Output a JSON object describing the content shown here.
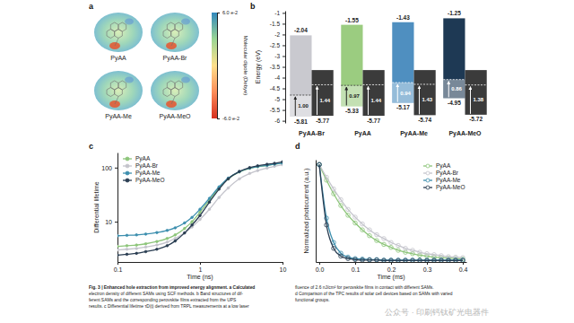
{
  "panel_labels": [
    "a",
    "b",
    "c",
    "d"
  ],
  "panel_a": {
    "molecules": [
      "PyAA",
      "PyAA-Br",
      "PyAA-Me",
      "PyAA-MeO"
    ],
    "colorbar": {
      "label": "Molecular dipole (Debye)",
      "range": [
        -0.06,
        0.06
      ],
      "ticks": [
        {
          "value": 0.06,
          "label": "6.0 e-2"
        },
        {
          "value": -0.06,
          "label": "-6.0 e-2"
        }
      ],
      "colors": [
        "#d7301f",
        "#fc8d59",
        "#fee08b",
        "#99d594",
        "#3288bd"
      ]
    }
  },
  "chart_data": [
    {
      "type": "band_diagram",
      "ylabel": "Energy (eV)",
      "categories": [
        "PyAA-Br",
        "PyAA",
        "PyAA-Me",
        "PyAA-MeO"
      ],
      "ylim": [
        -6.1,
        -0.9
      ],
      "yticks": [
        -6,
        -5.5,
        -5,
        -4.5,
        -4,
        -3.5,
        -3,
        -2.5,
        -2,
        -1.5,
        -1
      ],
      "data_labels": true,
      "sam": {
        "top": [
          -2.04,
          -1.55,
          -1.43,
          -1.25
        ],
        "bottom": [
          -5.81,
          -5.33,
          -5.17,
          -4.95
        ],
        "colors": [
          "#c9c9cf",
          "#9bcc80",
          "#4f8fc0",
          "#1e3954"
        ],
        "offset": [
          1,
          0.97,
          0.94,
          0.86
        ],
        "offset_labels": [
          "1.00",
          "0.97",
          "0.94",
          "0.86"
        ]
      },
      "perovskite": {
        "top": [
          -3.65,
          -3.65,
          -3.65,
          -3.65
        ],
        "bottom": [
          -5.77,
          -5.77,
          -5.74,
          -5.72
        ],
        "color": "#3b3b3b",
        "offset": [
          1.44,
          1.44,
          1.43,
          1.38
        ]
      }
    },
    {
      "type": "line",
      "log": true,
      "legend": "upper left",
      "marker": "circle",
      "xlabel": "Time (ns)",
      "ylabel": "Differential lifetime",
      "x": [
        0.1,
        0.13,
        0.17,
        0.22,
        0.3,
        0.4,
        0.5,
        0.65,
        0.8,
        1,
        1.3,
        1.7,
        2.2,
        3,
        4,
        5,
        6.5,
        8,
        10
      ],
      "xlim": [
        0.1,
        10
      ],
      "xticks": [
        0.1,
        1,
        10
      ],
      "ylim": [
        1.8,
        190
      ],
      "yticks": [
        10,
        100
      ],
      "series": [
        {
          "name": "PyAA",
          "color": "#8dc57a",
          "values": [
            3.5,
            3.6,
            3.7,
            3.9,
            4.3,
            4.9,
            5.7,
            7.5,
            10,
            15,
            25,
            42,
            62,
            83,
            97,
            104,
            110,
            115,
            122
          ]
        },
        {
          "name": "PyAA-Br",
          "color": "#c4c4cc",
          "values": [
            3.0,
            3.1,
            3.2,
            3.4,
            3.7,
            4.2,
            4.9,
            6.2,
            8,
            11,
            17,
            28,
            42,
            62,
            78,
            88,
            98,
            106,
            113
          ]
        },
        {
          "name": "PyAA-Me",
          "color": "#3d8fae",
          "values": [
            5.5,
            5.6,
            5.7,
            5.9,
            6.3,
            6.9,
            7.7,
            9.5,
            12,
            17,
            27,
            44,
            64,
            84,
            98,
            105,
            110,
            116,
            121
          ]
        },
        {
          "name": "PyAA-MeO",
          "color": "#2a3d52",
          "values": [
            2.4,
            2.5,
            2.6,
            2.8,
            3.1,
            3.6,
            4.4,
            6.2,
            8.7,
            13,
            23,
            40,
            62,
            85,
            100,
            108,
            115,
            120,
            128
          ]
        }
      ]
    },
    {
      "type": "line",
      "legend": "upper right",
      "marker": "circle",
      "line_style": "solid",
      "tick_labels": "x",
      "xlabel": "Time (ms)",
      "ylabel": "Normalized photocurrent (a.u.)",
      "x": [
        0,
        0.02,
        0.04,
        0.06,
        0.08,
        0.1,
        0.12,
        0.14,
        0.16,
        0.18,
        0.2,
        0.22,
        0.24,
        0.26,
        0.28,
        0.3,
        0.32,
        0.34,
        0.36,
        0.38,
        0.4
      ],
      "xlim": [
        -0.01,
        0.41
      ],
      "xticks": [
        {
          "value": 0,
          "label": "0.0"
        },
        0.1,
        0.2,
        0.3,
        0.4
      ],
      "ylim": [
        0,
        1.05
      ],
      "series": [
        {
          "name": "PyAA",
          "color": "#8dc57a",
          "values": [
            1.0,
            0.84,
            0.7,
            0.58,
            0.48,
            0.4,
            0.33,
            0.27,
            0.22,
            0.18,
            0.15,
            0.12,
            0.1,
            0.085,
            0.07,
            0.06,
            0.05,
            0.045,
            0.04,
            0.035,
            0.03
          ]
        },
        {
          "name": "PyAA-Br",
          "color": "#c4c4cc",
          "values": [
            1.0,
            0.87,
            0.75,
            0.64,
            0.54,
            0.46,
            0.39,
            0.33,
            0.28,
            0.24,
            0.2,
            0.17,
            0.14,
            0.12,
            0.1,
            0.085,
            0.075,
            0.065,
            0.055,
            0.05,
            0.045
          ]
        },
        {
          "name": "PyAA-Me",
          "color": "#3d8fae",
          "values": [
            1.0,
            0.45,
            0.2,
            0.09,
            0.05,
            0.035,
            0.03,
            0.025,
            0.025,
            0.02,
            0.02,
            0.02,
            0.02,
            0.02,
            0.02,
            0.02,
            0.02,
            0.02,
            0.02,
            0.02,
            0.02
          ]
        },
        {
          "name": "PyAA-MeO",
          "color": "#2a3d52",
          "values": [
            1.0,
            0.38,
            0.14,
            0.06,
            0.035,
            0.025,
            0.02,
            0.02,
            0.02,
            0.015,
            0.015,
            0.015,
            0.015,
            0.015,
            0.015,
            0.015,
            0.015,
            0.015,
            0.015,
            0.015,
            0.015
          ]
        }
      ]
    }
  ],
  "caption": {
    "left": [
      "Fig. 3 | Enhanced hole extraction from improved energy alignment. a Calculated",
      "electron density of different SAMs using SCF methods. b Band structures of dif-",
      "ferent SAMs and the corresponding perovskite films extracted from the UPS",
      "results. c Differential lifetime τD(t) derived from TRPL measurements at a low laser"
    ],
    "right": [
      "fluence of 2.6 nJ/cm² for perovskite films in contact with different SAMs.",
      "d Comparison of the TPC results of solar cell devices based on SAMs with varied",
      "functional groups."
    ]
  },
  "watermark": "公众号 · 印刷钙钛矿光电器件"
}
